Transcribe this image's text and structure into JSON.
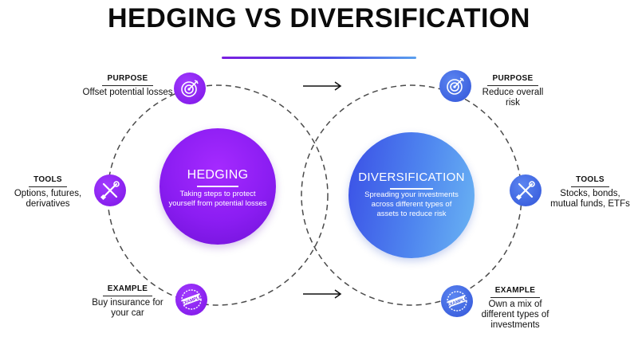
{
  "title": "HEDGING VS DIVERSIFICATION",
  "hedging": {
    "heading": "HEDGING",
    "description": "Taking steps to protect yourself from potential losses",
    "purpose": {
      "label": "PURPOSE",
      "text": "Offset potential losses"
    },
    "tools": {
      "label": "TOOLS",
      "text": "Options, futures, derivatives"
    },
    "example": {
      "label": "EXAMPLE",
      "text": "Buy insurance for your car",
      "stamp": "EXAMPLE"
    }
  },
  "diversification": {
    "heading": "DIVERSIFICATION",
    "description": "Spreading your investments across different types of assets to reduce risk",
    "purpose": {
      "label": "PURPOSE",
      "text": "Reduce overall risk"
    },
    "tools": {
      "label": "TOOLS",
      "text": "Stocks, bonds, mutual funds, ETFs"
    },
    "example": {
      "label": "EXAMPLE",
      "text": "Own a mix of different types of investments",
      "stamp": "EXAMPLE"
    }
  },
  "colors": {
    "purple": "#8b1df2",
    "blue": "#4f86ef",
    "dashed_ring": "#4a4a4a"
  },
  "icons": {
    "purpose": "target-icon",
    "tools": "wrench-screwdriver-icon",
    "example": "example-stamp-icon",
    "arrow": "right-arrow-icon"
  }
}
